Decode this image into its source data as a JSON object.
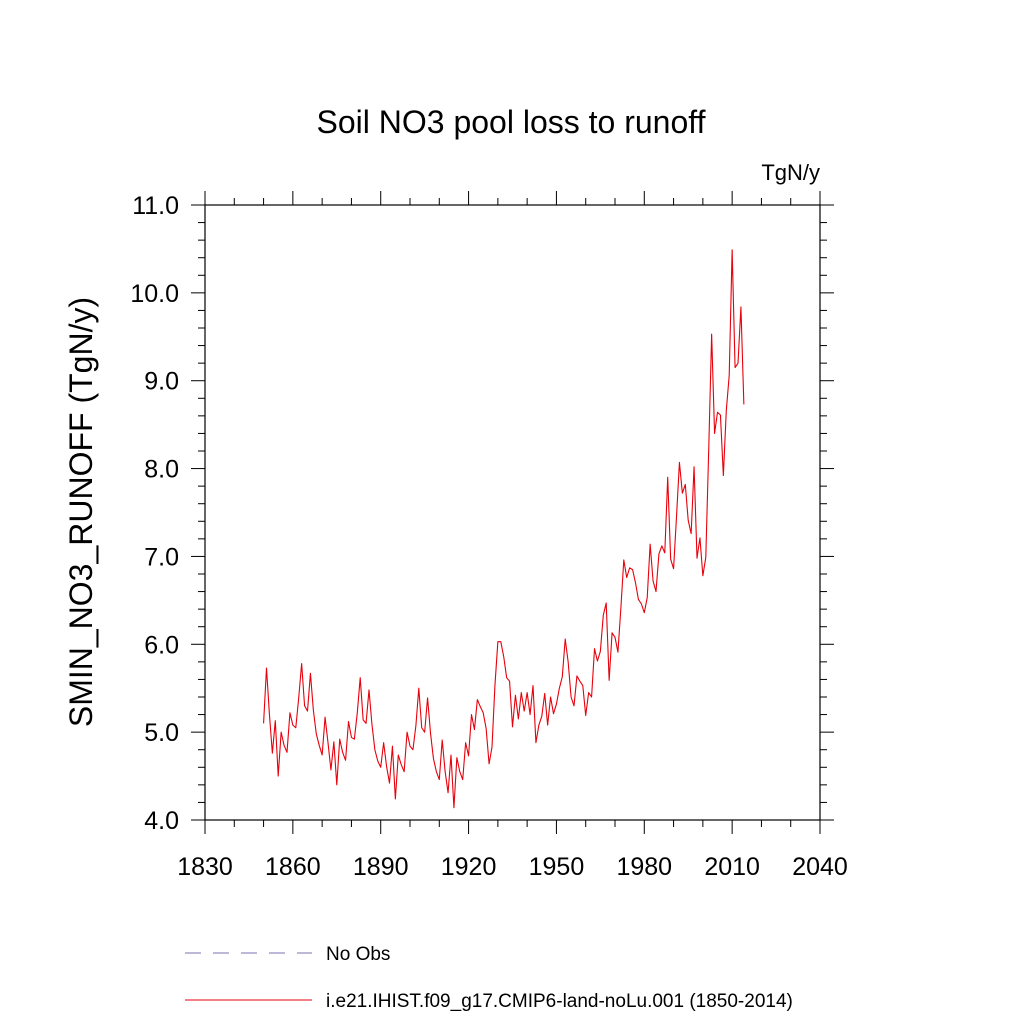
{
  "chart_data": {
    "type": "line",
    "title": "Soil NO3 pool loss to runoff",
    "units_label": "TgN/y",
    "ylabel": "SMIN_NO3_RUNOFF  (TgN/y)",
    "xlabel": "",
    "xlim": [
      1830,
      2040
    ],
    "ylim": [
      4.0,
      11.0
    ],
    "x_ticks": [
      "1830",
      "1860",
      "1890",
      "1920",
      "1950",
      "1980",
      "2010",
      "2040"
    ],
    "y_ticks": [
      "4.0",
      "5.0",
      "6.0",
      "7.0",
      "8.0",
      "9.0",
      "10.0",
      "11.0"
    ],
    "grid": false,
    "legend": [
      {
        "label": "No Obs",
        "color": "#7b6fb0",
        "style": "dashed"
      },
      {
        "label": "i.e21.IHIST.f09_g17.CMIP6-land-noLu.001 (1850-2014)",
        "color": "#e8000b",
        "style": "solid"
      }
    ],
    "series": [
      {
        "color": "#e8000b",
        "x_start": 1850,
        "x_step": 1,
        "values": [
          5.1,
          5.73,
          5.2,
          4.76,
          5.13,
          4.5,
          5.0,
          4.85,
          4.77,
          5.22,
          5.08,
          5.05,
          5.39,
          5.78,
          5.3,
          5.24,
          5.67,
          5.25,
          4.98,
          4.85,
          4.74,
          5.17,
          4.88,
          4.57,
          4.89,
          4.4,
          4.92,
          4.77,
          4.68,
          5.12,
          4.94,
          4.92,
          5.22,
          5.62,
          5.14,
          5.1,
          5.48,
          5.09,
          4.8,
          4.67,
          4.6,
          4.88,
          4.61,
          4.42,
          4.84,
          4.24,
          4.74,
          4.63,
          4.55,
          5.0,
          4.84,
          4.8,
          5.07,
          5.5,
          5.05,
          5.0,
          5.39,
          4.99,
          4.7,
          4.55,
          4.46,
          4.91,
          4.55,
          4.31,
          4.74,
          4.14,
          4.71,
          4.55,
          4.46,
          4.88,
          4.73,
          5.2,
          5.03,
          5.37,
          5.29,
          5.22,
          5.04,
          4.64,
          4.83,
          5.53,
          6.03,
          6.03,
          5.86,
          5.62,
          5.58,
          5.06,
          5.42,
          5.15,
          5.45,
          5.24,
          5.45,
          5.2,
          5.53,
          4.88,
          5.08,
          5.18,
          5.44,
          5.08,
          5.4,
          5.21,
          5.32,
          5.5,
          5.63,
          6.06,
          5.8,
          5.4,
          5.3,
          5.64,
          5.58,
          5.53,
          5.19,
          5.45,
          5.4,
          5.95,
          5.81,
          5.92,
          6.33,
          6.47,
          5.59,
          6.13,
          6.08,
          5.91,
          6.41,
          6.96,
          6.76,
          6.87,
          6.85,
          6.7,
          6.51,
          6.46,
          6.36,
          6.53,
          7.14,
          6.72,
          6.6,
          7.03,
          7.12,
          7.04,
          7.9,
          6.97,
          6.86,
          7.45,
          8.07,
          7.72,
          7.82,
          7.41,
          7.26,
          8.02,
          6.98,
          7.21,
          6.78,
          6.99,
          8.21,
          9.53,
          8.4,
          8.64,
          8.61,
          7.92,
          8.66,
          9.06,
          10.49,
          9.15,
          9.2,
          9.84,
          8.73
        ]
      }
    ]
  }
}
